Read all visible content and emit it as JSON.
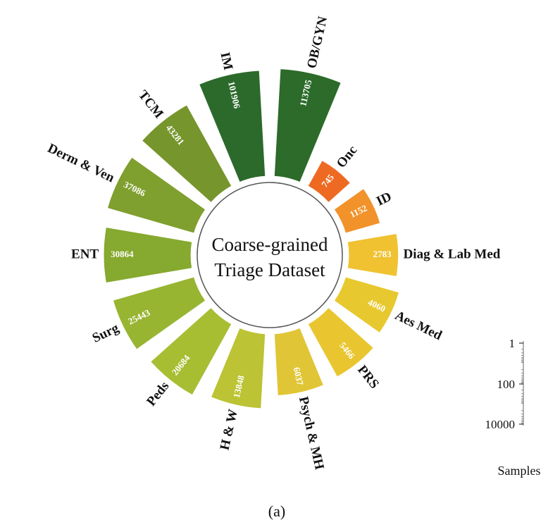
{
  "chart_data": {
    "type": "radial-bar",
    "center_title_lines": [
      "Coarse-grained",
      "Triage Dataset"
    ],
    "caption": "(a)",
    "scale": {
      "title": "Samples",
      "ticks": [
        "1",
        "100",
        "10000"
      ],
      "log": true
    },
    "bars": [
      {
        "category": "OB/GYN",
        "value": 113705,
        "value_label": "113705",
        "color": "#2c6b2a"
      },
      {
        "category": "Onc",
        "value": 745,
        "value_label": "745",
        "color": "#ee6a22"
      },
      {
        "category": "ID",
        "value": 1152,
        "value_label": "1152",
        "color": "#f2922a"
      },
      {
        "category": "Diag & Lab Med",
        "value": 2783,
        "value_label": "2783",
        "color": "#f0c231"
      },
      {
        "category": "Aes Med",
        "value": 4060,
        "value_label": "4060",
        "color": "#e8c82f"
      },
      {
        "category": "PRS",
        "value": 5466,
        "value_label": "5466",
        "color": "#e9c630"
      },
      {
        "category": "Psych & MH",
        "value": 6037,
        "value_label": "6037",
        "color": "#e0c636"
      },
      {
        "category": "H & W",
        "value": 13848,
        "value_label": "13848",
        "color": "#bcc334"
      },
      {
        "category": "Peds",
        "value": 20684,
        "value_label": "20684",
        "color": "#a7be33"
      },
      {
        "category": "Surg",
        "value": 25443,
        "value_label": "25443",
        "color": "#98b532"
      },
      {
        "category": "ENT",
        "value": 30864,
        "value_label": "30864",
        "color": "#86a92f"
      },
      {
        "category": "Derm & Ven",
        "value": 37086,
        "value_label": "37086",
        "color": "#7f9f2e"
      },
      {
        "category": "TCM",
        "value": 43281,
        "value_label": "43281",
        "color": "#76952c"
      },
      {
        "category": "IM",
        "value": 101906,
        "value_label": "101906",
        "color": "#2c6a2b"
      }
    ]
  }
}
